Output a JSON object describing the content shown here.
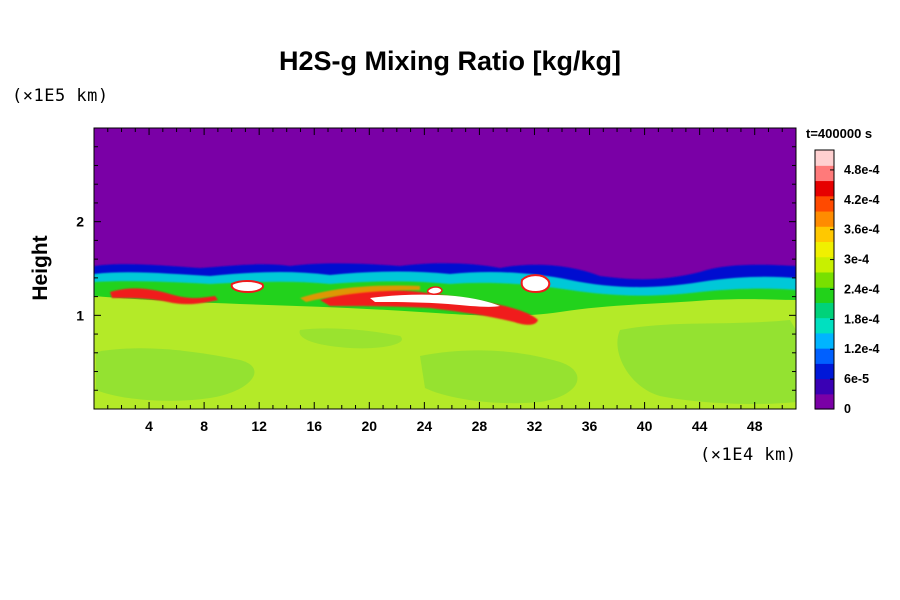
{
  "chart_data": {
    "type": "heatmap",
    "title": "H2S-g Mixing Ratio [kg/kg]",
    "ylabel": "Height",
    "xlabel": "",
    "x_unit": "(×1E4 km)",
    "y_unit": "(×1E5 km)",
    "time_label": "t=400000 s",
    "xlim": [
      0,
      51
    ],
    "ylim": [
      0,
      3
    ],
    "x_ticks": [
      4,
      8,
      12,
      16,
      20,
      24,
      28,
      32,
      36,
      40,
      44,
      48
    ],
    "y_ticks": [
      1,
      2
    ],
    "colorbar": {
      "range": [
        0,
        0.00052
      ],
      "tick_labels": [
        "0",
        "6e-5",
        "1.2e-4",
        "1.8e-4",
        "2.4e-4",
        "3e-4",
        "3.6e-4",
        "4.2e-4",
        "4.8e-4"
      ],
      "tick_values": [
        0,
        6e-05,
        0.00012,
        0.00018,
        0.00024,
        0.0003,
        0.00036,
        0.00042,
        0.00048
      ],
      "colors": [
        "#7a00a6",
        "#3a00b4",
        "#0018d8",
        "#0060ff",
        "#00b4ff",
        "#00e0c0",
        "#00d27a",
        "#22d21a",
        "#78e000",
        "#c8f000",
        "#f0f000",
        "#ffc800",
        "#ff8c00",
        "#ff4a00",
        "#e60000",
        "#ff7a7a",
        "#ffd0d0"
      ]
    },
    "regions": [
      {
        "description_value": 0,
        "color": "#7a00a6"
      },
      {
        "description_value": 0.00033,
        "color": "#b4ea28"
      },
      {
        "description_value": 0.0003,
        "color": "#8ee032"
      },
      {
        "description_value": 0.00046,
        "color": "#f01a1a"
      },
      {
        "description_value": 0.00052,
        "color": "#ffffff"
      }
    ]
  }
}
